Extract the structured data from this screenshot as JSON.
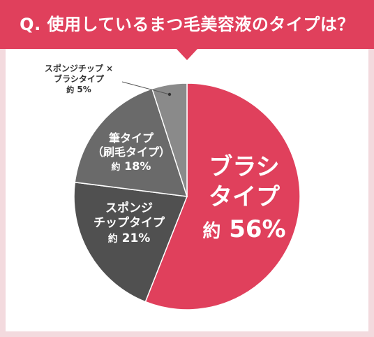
{
  "header": {
    "question": "Q. 使用しているまつ毛美容液のタイプは？"
  },
  "colors": {
    "header_bg": "#e0405c",
    "background": "#f3dade",
    "card": "#ffffff",
    "slice_brush": "#e0405c",
    "slice_sponge_chip": "#505050",
    "slice_brush_pen": "#6a6a6a",
    "slice_sponge_chip_brush": "#8a8a8a"
  },
  "chart_data": {
    "type": "pie",
    "start_angle_deg": 0,
    "direction": "clockwise",
    "slices": [
      {
        "label_lines": [
          "ブラシ",
          "タイプ"
        ],
        "prefix": "約",
        "value": 56,
        "display": "56%",
        "color": "#e0405c"
      },
      {
        "label_lines": [
          "スポンジ",
          "チップタイプ"
        ],
        "prefix": "約",
        "value": 21,
        "display": "21%",
        "color": "#505050"
      },
      {
        "label_lines": [
          "筆タイプ",
          "（刷毛タイプ）"
        ],
        "prefix": "約",
        "value": 18,
        "display": "18%",
        "color": "#6a6a6a"
      },
      {
        "label_lines": [
          "スポンジチップ ×",
          "ブラシタイプ"
        ],
        "prefix": "約",
        "value": 5,
        "display": "5%",
        "color": "#8a8a8a"
      }
    ]
  }
}
